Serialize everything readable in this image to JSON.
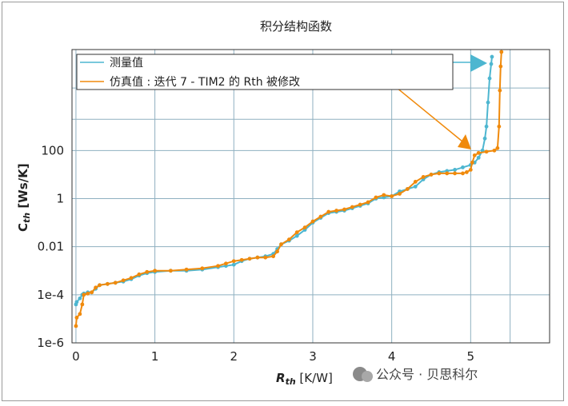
{
  "chart_data": {
    "type": "line",
    "title": "积分结构函数",
    "xlabel_main": "R",
    "xlabel_sub": "th",
    "xlabel_unit": " [K/W]",
    "ylabel_main": "C",
    "ylabel_sub": "th",
    "ylabel_unit": " [Ws/K]",
    "xlim": [
      -0.05,
      6.0
    ],
    "ylim_log10": [
      -6,
      6.2
    ],
    "y_scale": "log",
    "x_ticks": [
      0,
      1,
      2,
      3,
      4,
      5
    ],
    "x_tick_labels": [
      "0",
      "1",
      "2",
      "3",
      "4",
      "5"
    ],
    "y_ticks_log10": [
      -6,
      -4,
      -2,
      0,
      2
    ],
    "y_tick_labels": [
      "1e-6",
      "1e-4",
      "0.01",
      "1",
      "100"
    ],
    "grid": true,
    "legend_position": "top-left",
    "series": [
      {
        "name": "测量值",
        "color": "#4db6d0",
        "x": [
          0.0,
          0.01,
          0.05,
          0.08,
          0.1,
          0.15,
          0.2,
          0.25,
          0.3,
          0.4,
          0.5,
          0.6,
          0.7,
          0.8,
          0.9,
          1.0,
          1.2,
          1.4,
          1.6,
          1.8,
          1.9,
          2.0,
          2.1,
          2.2,
          2.3,
          2.4,
          2.5,
          2.55,
          2.6,
          2.7,
          2.8,
          2.9,
          3.0,
          3.1,
          3.2,
          3.3,
          3.4,
          3.5,
          3.6,
          3.7,
          3.8,
          3.9,
          4.0,
          4.1,
          4.2,
          4.3,
          4.4,
          4.5,
          4.6,
          4.7,
          4.8,
          4.9,
          5.0,
          5.05,
          5.1,
          5.15,
          5.18,
          5.2,
          5.22,
          5.24,
          5.26,
          5.27
        ],
        "y_log10": [
          -4.4,
          -4.3,
          -4.15,
          -4.0,
          -3.95,
          -3.9,
          -3.9,
          -3.75,
          -3.6,
          -3.55,
          -3.5,
          -3.45,
          -3.35,
          -3.2,
          -3.1,
          -3.05,
          -3.0,
          -3.0,
          -2.95,
          -2.85,
          -2.8,
          -2.75,
          -2.6,
          -2.5,
          -2.45,
          -2.4,
          -2.3,
          -2.1,
          -1.9,
          -1.75,
          -1.55,
          -1.3,
          -1.0,
          -0.8,
          -0.6,
          -0.55,
          -0.5,
          -0.4,
          -0.3,
          -0.2,
          0.0,
          0.05,
          0.1,
          0.3,
          0.4,
          0.5,
          0.8,
          1.0,
          1.1,
          1.15,
          1.2,
          1.3,
          1.4,
          1.5,
          1.7,
          2.0,
          2.5,
          3.0,
          4.0,
          5.0,
          5.6,
          5.9
        ]
      },
      {
        "name": "仿真值 : 迭代 7 - TIM2 的 Rth 被修改",
        "color": "#f08a0c",
        "x": [
          0.0,
          0.01,
          0.05,
          0.08,
          0.1,
          0.15,
          0.2,
          0.25,
          0.3,
          0.4,
          0.5,
          0.6,
          0.7,
          0.8,
          0.9,
          1.0,
          1.2,
          1.4,
          1.6,
          1.8,
          1.9,
          2.0,
          2.1,
          2.2,
          2.3,
          2.4,
          2.5,
          2.55,
          2.6,
          2.7,
          2.8,
          2.9,
          3.0,
          3.1,
          3.2,
          3.3,
          3.4,
          3.5,
          3.6,
          3.7,
          3.8,
          3.9,
          4.0,
          4.1,
          4.2,
          4.3,
          4.4,
          4.5,
          4.6,
          4.7,
          4.8,
          4.9,
          4.95,
          5.0,
          5.02,
          5.05,
          5.1,
          5.2,
          5.3,
          5.34,
          5.36,
          5.37,
          5.38,
          5.39
        ],
        "y_log10": [
          -5.3,
          -4.95,
          -4.8,
          -4.4,
          -4.0,
          -3.95,
          -3.9,
          -3.7,
          -3.6,
          -3.55,
          -3.5,
          -3.4,
          -3.3,
          -3.15,
          -3.05,
          -3.0,
          -3.0,
          -2.95,
          -2.9,
          -2.8,
          -2.7,
          -2.6,
          -2.55,
          -2.5,
          -2.45,
          -2.45,
          -2.4,
          -2.2,
          -1.9,
          -1.7,
          -1.4,
          -1.2,
          -0.95,
          -0.75,
          -0.55,
          -0.5,
          -0.45,
          -0.35,
          -0.25,
          -0.15,
          0.05,
          0.15,
          0.1,
          0.2,
          0.4,
          0.7,
          0.9,
          1.0,
          1.05,
          1.05,
          1.05,
          1.05,
          1.1,
          1.2,
          1.5,
          1.8,
          1.9,
          1.95,
          2.0,
          2.1,
          3.0,
          4.5,
          5.5,
          6.1
        ]
      }
    ]
  },
  "watermark": "公众号 · 贝思科尔"
}
